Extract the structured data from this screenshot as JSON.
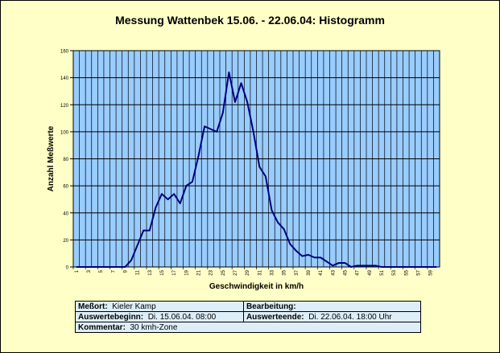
{
  "chart_data": {
    "type": "line",
    "title": "Messung Wattenbek 15.06. - 22.06.04: Histogramm",
    "xlabel": "Geschwindigkeit in km/h",
    "ylabel": "Anzahl Meßwerte",
    "ylim": [
      0,
      160
    ],
    "yticks": [
      0,
      20,
      40,
      60,
      80,
      100,
      120,
      140,
      160
    ],
    "xticks": [
      1,
      3,
      5,
      7,
      9,
      11,
      13,
      15,
      17,
      19,
      21,
      23,
      25,
      27,
      29,
      31,
      33,
      35,
      37,
      39,
      41,
      43,
      45,
      47,
      49,
      51,
      53,
      55,
      57,
      59
    ],
    "grid": true,
    "colors": {
      "background": "#ffffc8",
      "plot_area": "#99ccff",
      "line": "#00007f",
      "grid": "#000000",
      "table": "#ddeef8"
    },
    "x": [
      1,
      2,
      3,
      4,
      5,
      6,
      7,
      8,
      9,
      10,
      11,
      12,
      13,
      14,
      15,
      16,
      17,
      18,
      19,
      20,
      21,
      22,
      23,
      24,
      25,
      26,
      27,
      28,
      29,
      30,
      31,
      32,
      33,
      34,
      35,
      36,
      37,
      38,
      39,
      40,
      41,
      42,
      43,
      44,
      45,
      46,
      47,
      48,
      49,
      50,
      51,
      52,
      53,
      54,
      55,
      56,
      57,
      58,
      59,
      60
    ],
    "values": [
      0,
      0,
      0,
      0,
      0,
      0,
      0,
      0,
      0,
      5,
      16,
      27,
      27,
      44,
      54,
      50,
      54,
      47,
      60,
      63,
      82,
      104,
      102,
      100,
      114,
      144,
      122,
      136,
      122,
      100,
      74,
      67,
      42,
      33,
      28,
      17,
      12,
      8,
      9,
      7,
      7,
      4,
      1,
      3,
      3,
      0,
      1,
      1,
      1,
      1,
      0,
      0,
      0,
      0,
      0,
      0,
      0,
      0,
      0,
      0
    ]
  },
  "info": {
    "messort_label": "Meßort:",
    "messort_value": "Kieler Kamp",
    "bearbeitung_label": "Bearbeitung:",
    "bearbeitung_value": "",
    "beginn_label": "Auswertebeginn:",
    "beginn_value": "Di. 15.06.04. 08:00",
    "ende_label": "Auswerteende:",
    "ende_value": "Di. 22.06.04. 18:00 Uhr",
    "kommentar_label": "Kommentar:",
    "kommentar_value": "30 kmh-Zone"
  }
}
